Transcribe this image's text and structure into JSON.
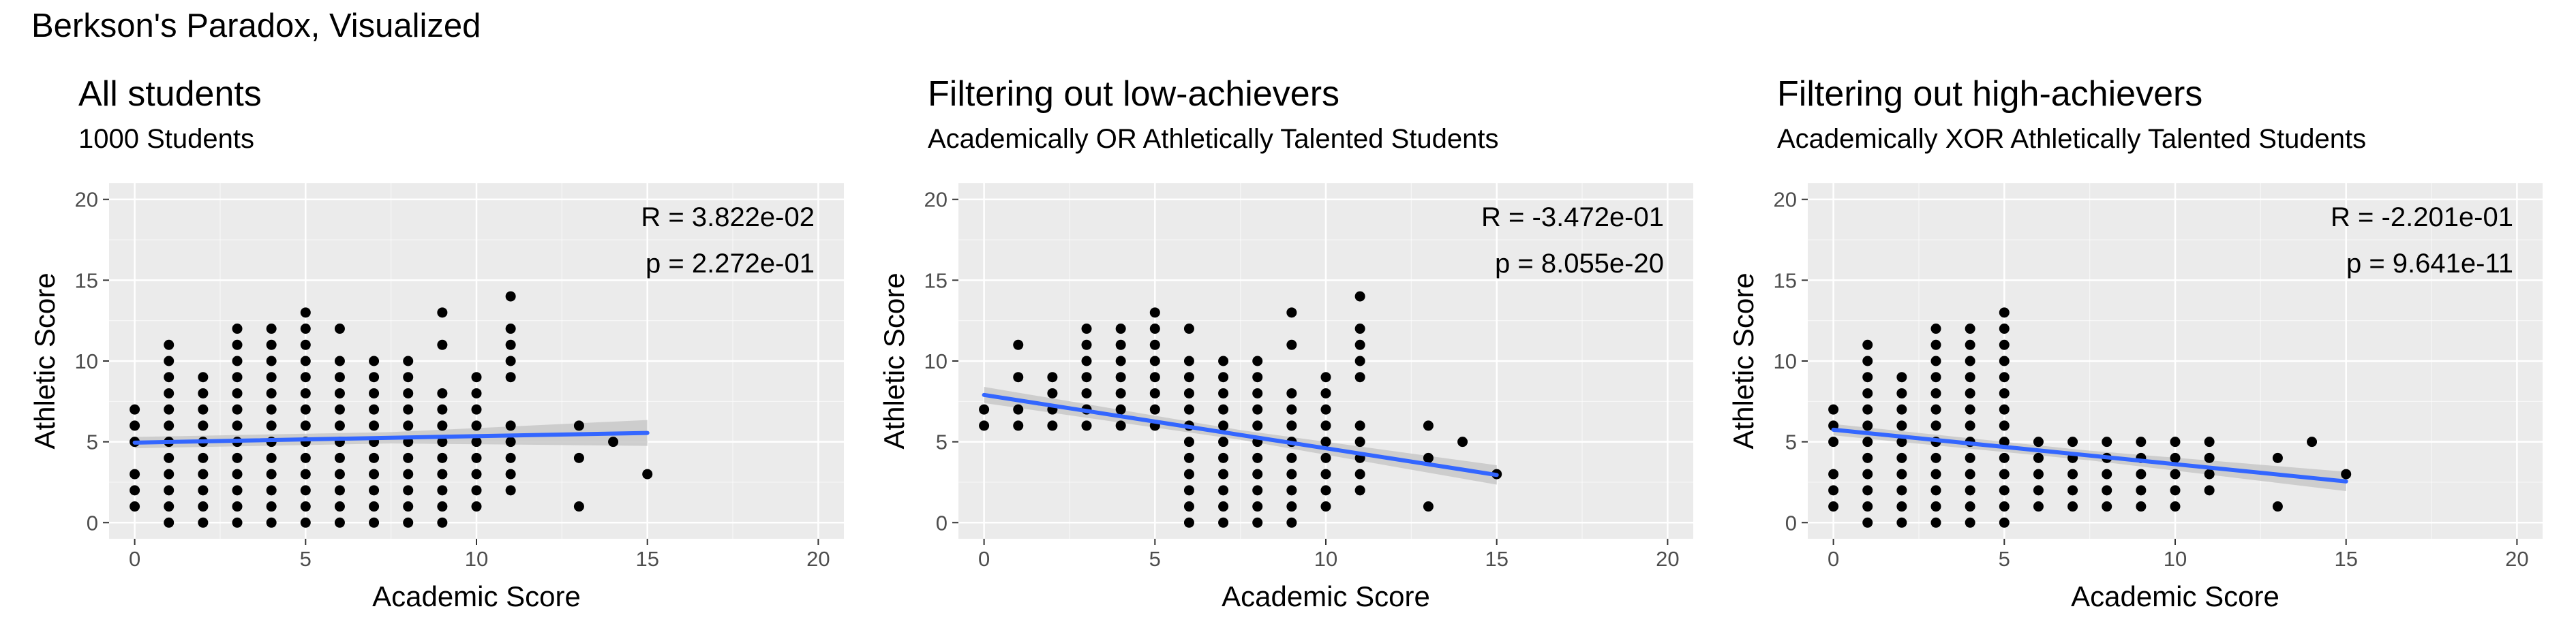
{
  "figure_title": "Berkson's Paradox, Visualized",
  "chart_data": [
    {
      "type": "scatter",
      "title": "All students",
      "subtitle": "1000 Students",
      "xlabel": "Academic Score",
      "ylabel": "Athletic Score",
      "xlim": [
        -0.75,
        20.75
      ],
      "ylim": [
        -1,
        21
      ],
      "xticks": [
        0,
        5,
        10,
        15,
        20
      ],
      "yticks": [
        0,
        5,
        10,
        15,
        20
      ],
      "grid": true,
      "stat_r": "R = 3.822e-02",
      "stat_p": "p = 2.272e-01",
      "columns": [
        {
          "x": 0,
          "ys": [
            1,
            2,
            3,
            5,
            6,
            7
          ]
        },
        {
          "x": 1,
          "ys": [
            0,
            1,
            2,
            3,
            4,
            5,
            6,
            7,
            8,
            9,
            10,
            11
          ]
        },
        {
          "x": 2,
          "ys": [
            0,
            1,
            2,
            3,
            4,
            5,
            6,
            7,
            8,
            9
          ]
        },
        {
          "x": 3,
          "ys": [
            0,
            1,
            2,
            3,
            4,
            5,
            6,
            7,
            8,
            9,
            10,
            11,
            12
          ]
        },
        {
          "x": 4,
          "ys": [
            0,
            1,
            2,
            3,
            4,
            5,
            6,
            7,
            8,
            9,
            10,
            11,
            12
          ]
        },
        {
          "x": 5,
          "ys": [
            0,
            1,
            2,
            3,
            4,
            5,
            6,
            7,
            8,
            9,
            10,
            11,
            12,
            13
          ]
        },
        {
          "x": 6,
          "ys": [
            0,
            1,
            2,
            3,
            4,
            5,
            6,
            7,
            8,
            9,
            10,
            12
          ]
        },
        {
          "x": 7,
          "ys": [
            0,
            1,
            2,
            3,
            4,
            5,
            6,
            7,
            8,
            9,
            10
          ]
        },
        {
          "x": 8,
          "ys": [
            0,
            1,
            2,
            3,
            4,
            5,
            6,
            7,
            8,
            9,
            10
          ]
        },
        {
          "x": 9,
          "ys": [
            0,
            1,
            2,
            3,
            4,
            5,
            6,
            7,
            8,
            11,
            13
          ]
        },
        {
          "x": 10,
          "ys": [
            1,
            2,
            3,
            4,
            5,
            6,
            7,
            8,
            9
          ]
        },
        {
          "x": 11,
          "ys": [
            2,
            3,
            4,
            5,
            6,
            9,
            10,
            11,
            12,
            14
          ]
        },
        {
          "x": 13,
          "ys": [
            1,
            4,
            6
          ]
        },
        {
          "x": 14,
          "ys": [
            5
          ]
        },
        {
          "x": 15,
          "ys": [
            3
          ]
        }
      ],
      "fit": {
        "x0": 0,
        "y0": 4.95,
        "x1": 15,
        "y1": 5.55,
        "band": [
          0.35,
          0.35,
          0.8
        ]
      }
    },
    {
      "type": "scatter",
      "title": "Filtering out low-achievers",
      "subtitle": "Academically OR Athletically Talented Students",
      "xlabel": "Academic Score",
      "ylabel": "Athletic Score",
      "xlim": [
        -0.75,
        20.75
      ],
      "ylim": [
        -1,
        21
      ],
      "xticks": [
        0,
        5,
        10,
        15,
        20
      ],
      "yticks": [
        0,
        5,
        10,
        15,
        20
      ],
      "grid": true,
      "stat_r": "R = -3.472e-01",
      "stat_p": "p = 8.055e-20",
      "columns": [
        {
          "x": 0,
          "ys": [
            6,
            7
          ]
        },
        {
          "x": 1,
          "ys": [
            6,
            7,
            9,
            11
          ]
        },
        {
          "x": 2,
          "ys": [
            6,
            7,
            8,
            9
          ]
        },
        {
          "x": 3,
          "ys": [
            6,
            7,
            8,
            9,
            10,
            11,
            12
          ]
        },
        {
          "x": 4,
          "ys": [
            6,
            7,
            8,
            9,
            10,
            11,
            12
          ]
        },
        {
          "x": 5,
          "ys": [
            6,
            7,
            8,
            9,
            10,
            11,
            12,
            13
          ]
        },
        {
          "x": 6,
          "ys": [
            0,
            1,
            2,
            3,
            4,
            5,
            6,
            7,
            8,
            9,
            10,
            12
          ]
        },
        {
          "x": 7,
          "ys": [
            0,
            1,
            2,
            3,
            4,
            5,
            6,
            7,
            8,
            9,
            10
          ]
        },
        {
          "x": 8,
          "ys": [
            0,
            1,
            2,
            3,
            4,
            5,
            6,
            7,
            8,
            9,
            10
          ]
        },
        {
          "x": 9,
          "ys": [
            0,
            1,
            2,
            3,
            4,
            5,
            6,
            7,
            8,
            11,
            13
          ]
        },
        {
          "x": 10,
          "ys": [
            1,
            2,
            3,
            4,
            5,
            6,
            7,
            8,
            9
          ]
        },
        {
          "x": 11,
          "ys": [
            2,
            3,
            4,
            5,
            6,
            9,
            10,
            11,
            12,
            14
          ]
        },
        {
          "x": 13,
          "ys": [
            1,
            4,
            6
          ]
        },
        {
          "x": 14,
          "ys": [
            5
          ]
        },
        {
          "x": 15,
          "ys": [
            3
          ]
        }
      ],
      "fit": {
        "x0": 0,
        "y0": 7.9,
        "x1": 15,
        "y1": 2.95,
        "band": [
          0.5,
          0.3,
          0.6
        ]
      }
    },
    {
      "type": "scatter",
      "title": "Filtering out high-achievers",
      "subtitle": "Academically XOR Athletically Talented Students",
      "xlabel": "Academic Score",
      "ylabel": "Athletic Score",
      "xlim": [
        -0.75,
        20.75
      ],
      "ylim": [
        -1,
        21
      ],
      "xticks": [
        0,
        5,
        10,
        15,
        20
      ],
      "yticks": [
        0,
        5,
        10,
        15,
        20
      ],
      "grid": true,
      "stat_r": "R = -2.201e-01",
      "stat_p": "p = 9.641e-11",
      "columns": [
        {
          "x": 0,
          "ys": [
            1,
            2,
            3,
            5,
            6,
            7
          ]
        },
        {
          "x": 1,
          "ys": [
            0,
            1,
            2,
            3,
            4,
            5,
            6,
            7,
            8,
            9,
            10,
            11
          ]
        },
        {
          "x": 2,
          "ys": [
            0,
            1,
            2,
            3,
            4,
            5,
            6,
            7,
            8,
            9
          ]
        },
        {
          "x": 3,
          "ys": [
            0,
            1,
            2,
            3,
            4,
            5,
            6,
            7,
            8,
            9,
            10,
            11,
            12
          ]
        },
        {
          "x": 4,
          "ys": [
            0,
            1,
            2,
            3,
            4,
            5,
            6,
            7,
            8,
            9,
            10,
            11,
            12
          ]
        },
        {
          "x": 5,
          "ys": [
            0,
            1,
            2,
            3,
            4,
            5,
            6,
            7,
            8,
            9,
            10,
            11,
            12,
            13
          ]
        },
        {
          "x": 6,
          "ys": [
            1,
            2,
            3,
            4,
            5
          ]
        },
        {
          "x": 7,
          "ys": [
            1,
            2,
            3,
            4,
            5
          ]
        },
        {
          "x": 8,
          "ys": [
            1,
            2,
            3,
            4,
            5
          ]
        },
        {
          "x": 9,
          "ys": [
            1,
            2,
            3,
            4,
            5
          ]
        },
        {
          "x": 10,
          "ys": [
            1,
            2,
            3,
            4,
            5
          ]
        },
        {
          "x": 11,
          "ys": [
            2,
            3,
            4,
            5
          ]
        },
        {
          "x": 13,
          "ys": [
            1,
            4
          ]
        },
        {
          "x": 14,
          "ys": [
            5
          ]
        },
        {
          "x": 15,
          "ys": [
            3
          ]
        }
      ],
      "fit": {
        "x0": 0,
        "y0": 5.75,
        "x1": 15,
        "y1": 2.55,
        "band": [
          0.35,
          0.3,
          0.6
        ]
      }
    }
  ],
  "colors": {
    "panel_bg": "#ebebeb",
    "grid_major": "#ffffff",
    "points": "#000000",
    "fit_line": "#3366ff",
    "fit_band": "#c8c8c8",
    "tick_text": "#4d4d4d"
  }
}
